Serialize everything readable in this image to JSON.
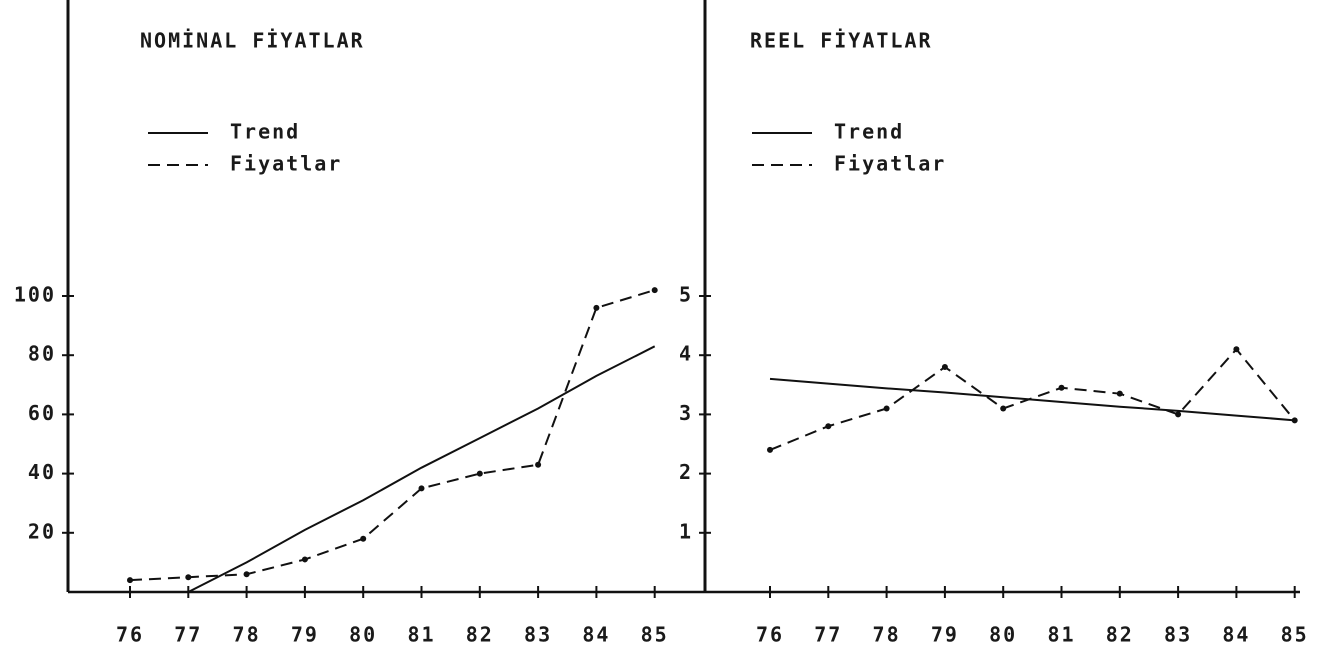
{
  "chart_data": [
    {
      "type": "line",
      "title": "NOMİNAL FİYATLAR",
      "categories": [
        "76",
        "77",
        "78",
        "79",
        "80",
        "81",
        "82",
        "83",
        "84",
        "85"
      ],
      "series": [
        {
          "name": "Trend",
          "color": "#111111",
          "style": "solid",
          "values": [
            null,
            0,
            10,
            21,
            31,
            42,
            52,
            62,
            73,
            83
          ]
        },
        {
          "name": "Fiyatlar",
          "color": "#111111",
          "style": "dashed",
          "values": [
            4,
            5,
            6,
            11,
            18,
            35,
            40,
            43,
            96,
            102
          ]
        }
      ],
      "ylim": [
        0,
        200
      ],
      "yticks": [
        20,
        40,
        60,
        80,
        100
      ],
      "grid": false
    },
    {
      "type": "line",
      "title": "REEL FİYATLAR",
      "categories": [
        "76",
        "77",
        "78",
        "79",
        "80",
        "81",
        "82",
        "83",
        "84",
        "85"
      ],
      "series": [
        {
          "name": "Trend",
          "color": "#111111",
          "style": "solid",
          "values": [
            3.6,
            3.52,
            3.44,
            3.37,
            3.29,
            3.21,
            3.13,
            3.06,
            2.98,
            2.9
          ]
        },
        {
          "name": "Fiyatlar",
          "color": "#111111",
          "style": "dashed",
          "values": [
            2.4,
            2.8,
            3.1,
            3.8,
            3.1,
            3.45,
            3.35,
            3.0,
            4.1,
            2.9
          ]
        }
      ],
      "ylim": [
        0,
        10
      ],
      "yticks": [
        1,
        2,
        3,
        4,
        5
      ],
      "grid": false
    }
  ]
}
